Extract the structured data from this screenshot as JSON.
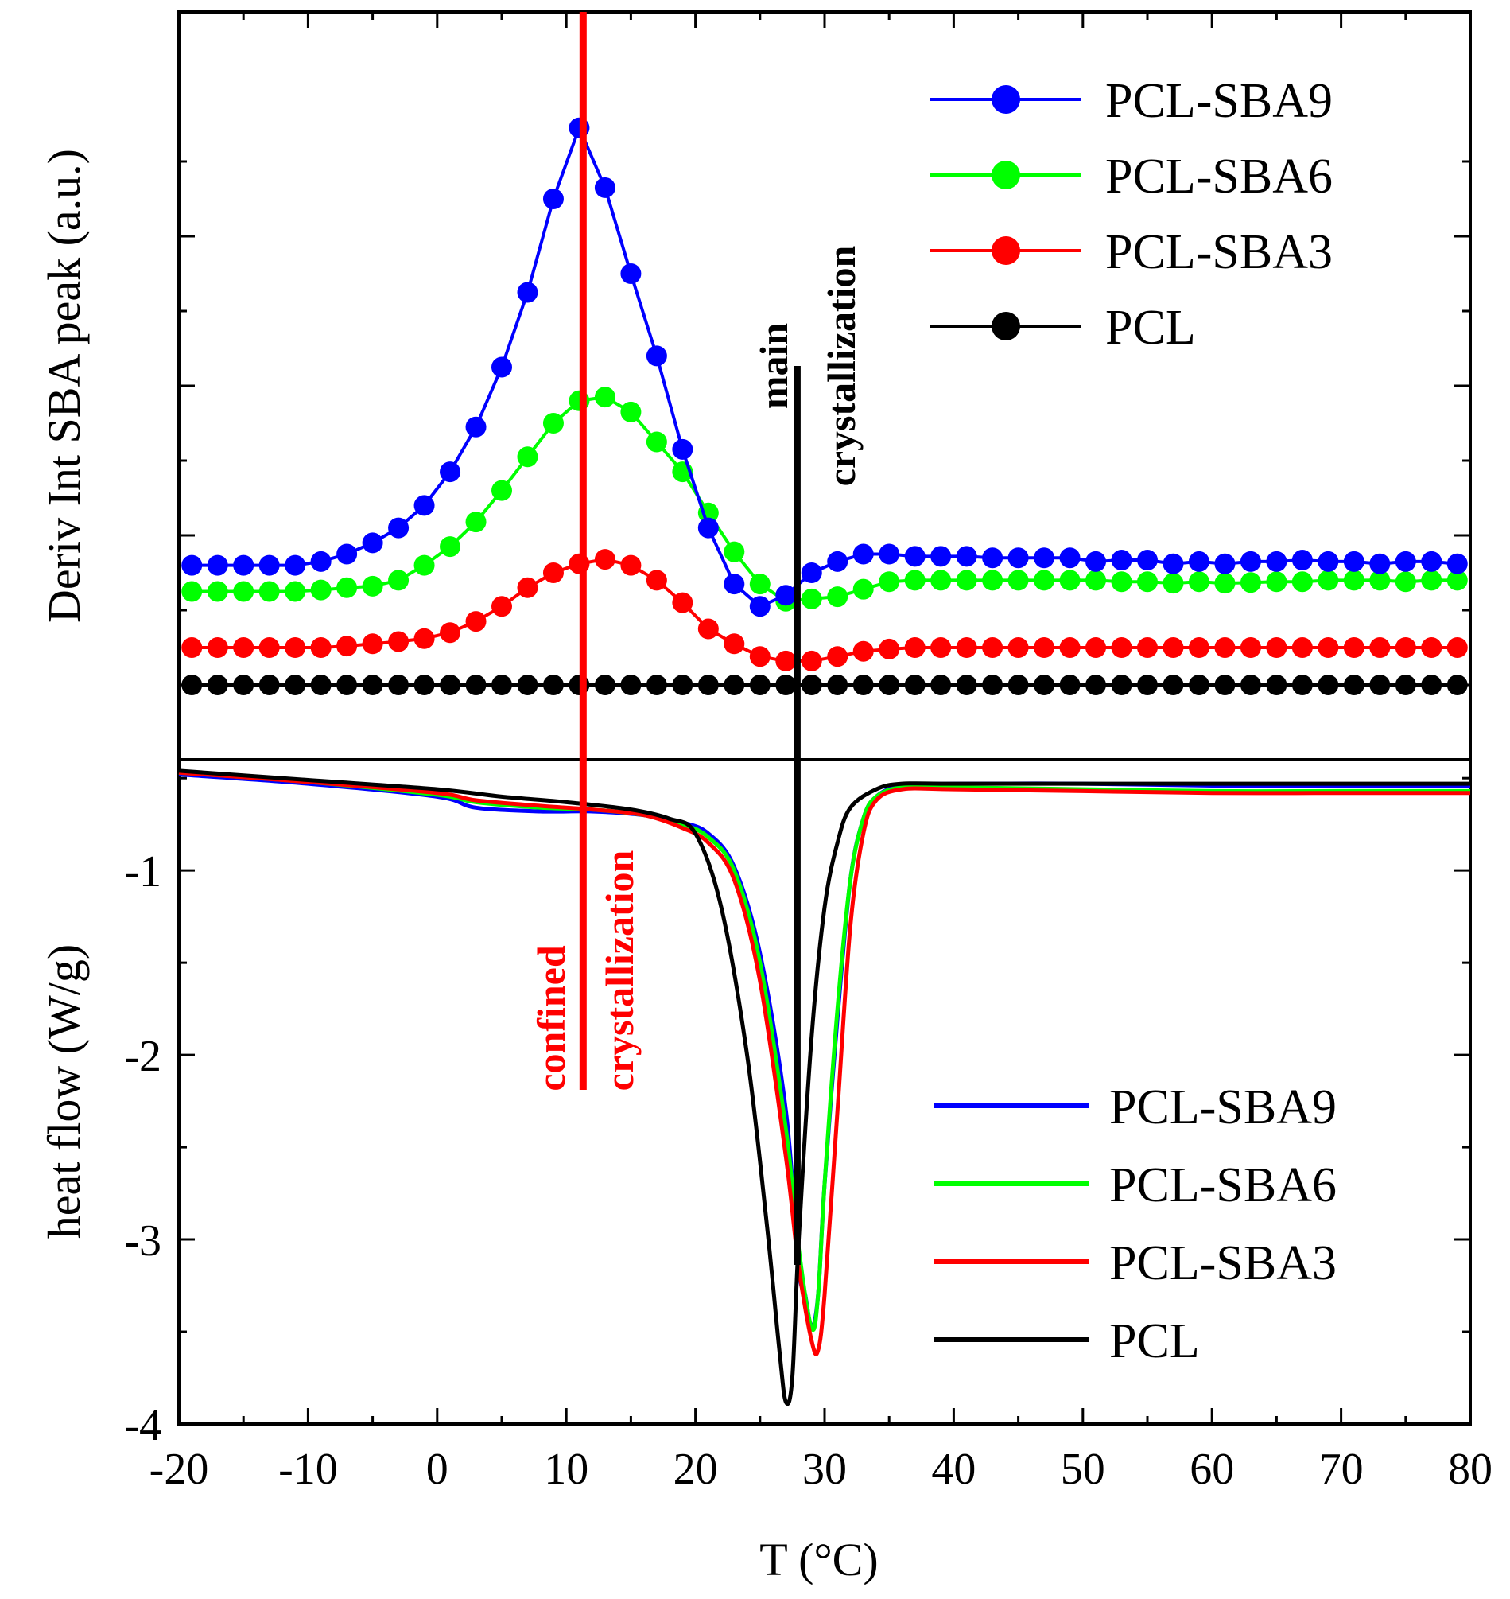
{
  "chart_data": [
    {
      "panel": "top",
      "type": "line",
      "ylabel": "Deriv Int SBA peak (a.u.)",
      "x_range": [
        -20,
        80
      ],
      "y_range": [
        0,
        1
      ],
      "y_ticks_unlabeled": [
        0.1,
        0.3,
        0.5,
        0.7
      ],
      "x": [
        -19,
        -17,
        -15,
        -13,
        -11,
        -9,
        -7,
        -5,
        -3,
        -1,
        1,
        3,
        5,
        7,
        9,
        11,
        13,
        15,
        17,
        19,
        21,
        23,
        25,
        27,
        29,
        31,
        33,
        35,
        37,
        39,
        41,
        43,
        45,
        47,
        49,
        51,
        53,
        55,
        57,
        59,
        61,
        63,
        65,
        67,
        69,
        71,
        73,
        75,
        77,
        79
      ],
      "series": [
        {
          "name": "PCL-SBA9",
          "color": "#0000ff",
          "marker": "circle",
          "values": [
            0.26,
            0.26,
            0.26,
            0.26,
            0.26,
            0.265,
            0.275,
            0.29,
            0.31,
            0.34,
            0.385,
            0.445,
            0.525,
            0.625,
            0.75,
            0.845,
            0.765,
            0.65,
            0.54,
            0.415,
            0.31,
            0.235,
            0.205,
            0.22,
            0.25,
            0.265,
            0.275,
            0.275,
            0.272,
            0.272,
            0.272,
            0.27,
            0.27,
            0.27,
            0.27,
            0.265,
            0.267,
            0.267,
            0.262,
            0.265,
            0.262,
            0.265,
            0.265,
            0.267,
            0.265,
            0.265,
            0.262,
            0.265,
            0.265,
            0.262
          ]
        },
        {
          "name": "PCL-SBA6",
          "color": "#00ff00",
          "marker": "circle",
          "values": [
            0.225,
            0.225,
            0.225,
            0.225,
            0.225,
            0.227,
            0.23,
            0.232,
            0.24,
            0.26,
            0.285,
            0.318,
            0.36,
            0.405,
            0.45,
            0.48,
            0.485,
            0.465,
            0.425,
            0.385,
            0.33,
            0.278,
            0.235,
            0.212,
            0.215,
            0.218,
            0.228,
            0.238,
            0.24,
            0.24,
            0.24,
            0.24,
            0.24,
            0.24,
            0.24,
            0.24,
            0.238,
            0.238,
            0.236,
            0.238,
            0.236,
            0.237,
            0.238,
            0.238,
            0.24,
            0.24,
            0.24,
            0.238,
            0.24,
            0.24
          ]
        },
        {
          "name": "PCL-SBA3",
          "color": "#ff0000",
          "marker": "circle",
          "values": [
            0.15,
            0.15,
            0.15,
            0.15,
            0.15,
            0.15,
            0.152,
            0.155,
            0.158,
            0.162,
            0.17,
            0.185,
            0.205,
            0.23,
            0.25,
            0.262,
            0.268,
            0.26,
            0.24,
            0.21,
            0.175,
            0.155,
            0.138,
            0.132,
            0.132,
            0.138,
            0.145,
            0.148,
            0.15,
            0.15,
            0.15,
            0.15,
            0.15,
            0.15,
            0.15,
            0.15,
            0.15,
            0.15,
            0.15,
            0.15,
            0.15,
            0.15,
            0.15,
            0.15,
            0.15,
            0.15,
            0.15,
            0.15,
            0.15,
            0.15
          ]
        },
        {
          "name": "PCL",
          "color": "#000000",
          "marker": "circle",
          "values": [
            0.1,
            0.1,
            0.1,
            0.1,
            0.1,
            0.1,
            0.1,
            0.1,
            0.1,
            0.1,
            0.1,
            0.1,
            0.1,
            0.1,
            0.1,
            0.1,
            0.1,
            0.1,
            0.1,
            0.1,
            0.1,
            0.1,
            0.1,
            0.1,
            0.1,
            0.1,
            0.1,
            0.1,
            0.1,
            0.1,
            0.1,
            0.1,
            0.1,
            0.1,
            0.1,
            0.1,
            0.1,
            0.1,
            0.1,
            0.1,
            0.1,
            0.1,
            0.1,
            0.1,
            0.1,
            0.1,
            0.1,
            0.1,
            0.1,
            0.1
          ]
        }
      ],
      "legend": [
        "PCL-SBA9",
        "PCL-SBA6",
        "PCL-SBA3",
        "PCL"
      ],
      "legend_position": "top-right"
    },
    {
      "panel": "bottom",
      "type": "line",
      "xlabel": "T (°C)",
      "ylabel": "heat flow (W/g)",
      "x_range": [
        -20,
        80
      ],
      "y_range": [
        -4,
        -0.4
      ],
      "x_ticks": [
        -20,
        -10,
        0,
        10,
        20,
        30,
        40,
        50,
        60,
        70,
        80
      ],
      "x_tick_labels": [
        "-20",
        "-10",
        "0",
        "10",
        "20",
        "30",
        "40",
        "50",
        "60",
        "70",
        "80"
      ],
      "y_ticks": [
        -4,
        -3,
        -2,
        -1
      ],
      "y_tick_labels": [
        "-4",
        "-3",
        "-2",
        "-1"
      ],
      "series": [
        {
          "name": "PCL-SBA9",
          "color": "#0000ff",
          "points": [
            [
              -20,
              -0.48
            ],
            [
              -10,
              -0.53
            ],
            [
              0,
              -0.6
            ],
            [
              3,
              -0.66
            ],
            [
              8,
              -0.68
            ],
            [
              12,
              -0.68
            ],
            [
              16,
              -0.7
            ],
            [
              19,
              -0.74
            ],
            [
              21,
              -0.8
            ],
            [
              23,
              -0.98
            ],
            [
              25,
              -1.45
            ],
            [
              27,
              -2.3
            ],
            [
              28,
              -3.15
            ],
            [
              28.5,
              -3.3
            ],
            [
              29,
              -3.48
            ],
            [
              29.5,
              -3.3
            ],
            [
              30,
              -2.7
            ],
            [
              31,
              -1.8
            ],
            [
              32,
              -1.05
            ],
            [
              33,
              -0.72
            ],
            [
              34,
              -0.6
            ],
            [
              36,
              -0.54
            ],
            [
              40,
              -0.53
            ],
            [
              50,
              -0.53
            ],
            [
              60,
              -0.54
            ],
            [
              70,
              -0.54
            ],
            [
              80,
              -0.54
            ]
          ]
        },
        {
          "name": "PCL-SBA6",
          "color": "#00ff00",
          "points": [
            [
              -20,
              -0.47
            ],
            [
              -10,
              -0.52
            ],
            [
              0,
              -0.59
            ],
            [
              3,
              -0.63
            ],
            [
              8,
              -0.66
            ],
            [
              12,
              -0.67
            ],
            [
              16,
              -0.7
            ],
            [
              19,
              -0.75
            ],
            [
              21,
              -0.82
            ],
            [
              23,
              -1.0
            ],
            [
              25,
              -1.5
            ],
            [
              27,
              -2.4
            ],
            [
              28,
              -3.05
            ],
            [
              29,
              -3.48
            ],
            [
              29.5,
              -3.3
            ],
            [
              30,
              -2.7
            ],
            [
              31,
              -1.75
            ],
            [
              32,
              -1.05
            ],
            [
              33,
              -0.72
            ],
            [
              34,
              -0.6
            ],
            [
              36,
              -0.55
            ],
            [
              40,
              -0.55
            ],
            [
              50,
              -0.56
            ],
            [
              60,
              -0.57
            ],
            [
              70,
              -0.57
            ],
            [
              80,
              -0.57
            ]
          ]
        },
        {
          "name": "PCL-SBA3",
          "color": "#ff0000",
          "points": [
            [
              -20,
              -0.47
            ],
            [
              -10,
              -0.52
            ],
            [
              0,
              -0.58
            ],
            [
              3,
              -0.62
            ],
            [
              8,
              -0.65
            ],
            [
              12,
              -0.67
            ],
            [
              16,
              -0.7
            ],
            [
              19,
              -0.77
            ],
            [
              21,
              -0.85
            ],
            [
              23,
              -1.05
            ],
            [
              25,
              -1.6
            ],
            [
              27,
              -2.55
            ],
            [
              28,
              -3.15
            ],
            [
              29,
              -3.55
            ],
            [
              29.5,
              -3.6
            ],
            [
              30,
              -3.3
            ],
            [
              31,
              -2.3
            ],
            [
              32,
              -1.3
            ],
            [
              33,
              -0.8
            ],
            [
              34,
              -0.62
            ],
            [
              36,
              -0.56
            ],
            [
              40,
              -0.56
            ],
            [
              50,
              -0.57
            ],
            [
              60,
              -0.58
            ],
            [
              70,
              -0.58
            ],
            [
              80,
              -0.58
            ]
          ]
        },
        {
          "name": "PCL",
          "color": "#000000",
          "points": [
            [
              -20,
              -0.46
            ],
            [
              -10,
              -0.51
            ],
            [
              0,
              -0.56
            ],
            [
              5,
              -0.6
            ],
            [
              10,
              -0.63
            ],
            [
              15,
              -0.67
            ],
            [
              18,
              -0.72
            ],
            [
              20,
              -0.8
            ],
            [
              22,
              -1.2
            ],
            [
              24,
              -2.0
            ],
            [
              25.5,
              -2.9
            ],
            [
              26.5,
              -3.6
            ],
            [
              27,
              -3.88
            ],
            [
              27.5,
              -3.75
            ],
            [
              28,
              -3.0
            ],
            [
              29,
              -1.9
            ],
            [
              30,
              -1.2
            ],
            [
              31,
              -0.85
            ],
            [
              32,
              -0.66
            ],
            [
              34,
              -0.56
            ],
            [
              36,
              -0.53
            ],
            [
              40,
              -0.53
            ],
            [
              50,
              -0.53
            ],
            [
              60,
              -0.53
            ],
            [
              70,
              -0.53
            ],
            [
              80,
              -0.53
            ]
          ]
        }
      ],
      "legend": [
        "PCL-SBA9",
        "PCL-SBA6",
        "PCL-SBA3",
        "PCL"
      ],
      "legend_position": "bottom-right"
    }
  ],
  "annotations": {
    "confined": {
      "x_value": 11.3,
      "color": "#ff0000",
      "line1": "confined",
      "line2": "crystallization"
    },
    "main": {
      "x_value": 27.9,
      "color": "#000000",
      "line1": "main",
      "line2": "crystallization"
    }
  }
}
